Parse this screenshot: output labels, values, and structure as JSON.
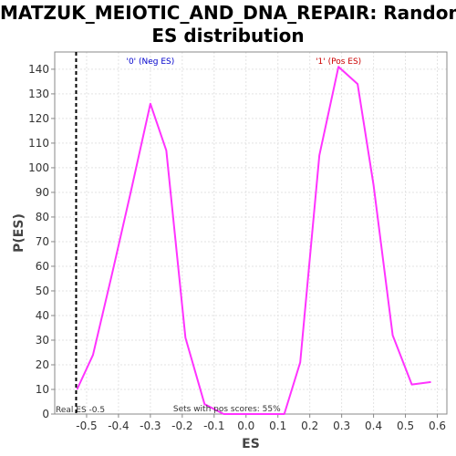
{
  "title_line1": "MATZUK_MEIOTIC_AND_DNA_REPAIR: Random",
  "title_line2": "ES distribution",
  "chart_data": {
    "type": "line",
    "title": "MATZUK_MEIOTIC_AND_DNA_REPAIR: Random ES distribution",
    "xlabel": "ES",
    "ylabel": "P(ES)",
    "xlim": [
      -0.6,
      0.63
    ],
    "ylim": [
      0,
      147
    ],
    "xticks": [
      -0.5,
      -0.4,
      -0.3,
      -0.2,
      -0.1,
      0.0,
      0.1,
      0.2,
      0.3,
      0.4,
      0.5,
      0.6
    ],
    "xtick_labels": [
      "-0.5",
      "-0.4",
      "-0.3",
      "-0.2",
      "-0.1",
      "0.0",
      "0.1",
      "0.2",
      "0.3",
      "0.4",
      "0.5",
      "0.6"
    ],
    "yticks": [
      0,
      10,
      20,
      30,
      40,
      50,
      60,
      70,
      80,
      90,
      100,
      110,
      120,
      130,
      140
    ],
    "grid": true,
    "series": [
      {
        "color": "#ff33ff",
        "x": [
          -0.53,
          -0.48,
          -0.42,
          -0.36,
          -0.3,
          -0.25,
          -0.19,
          -0.13,
          -0.07,
          0.0,
          0.05,
          0.12,
          0.17,
          0.23,
          0.29,
          0.35,
          0.4,
          0.46,
          0.52,
          0.58
        ],
        "y": [
          10,
          24,
          57,
          91,
          126,
          107,
          31,
          4,
          0,
          0,
          0,
          0,
          21,
          105,
          141,
          134,
          93,
          32,
          12,
          13
        ]
      }
    ],
    "real_es": -0.5,
    "real_es_label": "Real ES -0.5",
    "neg_label": "'0' (Neg ES)",
    "neg_color": "#0000cc",
    "pos_label": "'1' (Pos ES)",
    "pos_color": "#cc0000",
    "pos_scores_label": "Sets with pos scores: 55%"
  }
}
